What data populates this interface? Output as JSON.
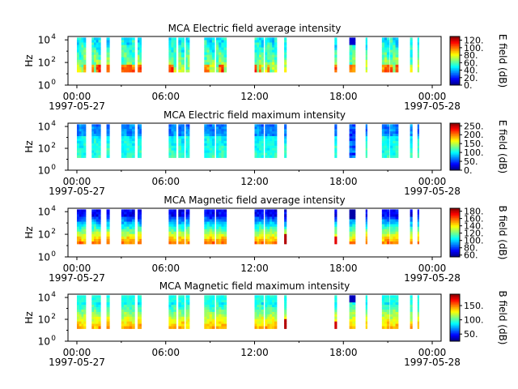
{
  "chart_data": [
    {
      "type": "heatmap",
      "title": "MCA  Electric field average intensity",
      "ylabel": "Hz",
      "colorbar_label": "E field (dB)",
      "x_ticks": [
        "00:00",
        "06:00",
        "12:00",
        "18:00",
        "00:00"
      ],
      "x_tick_hours": [
        0,
        6,
        12,
        18,
        24
      ],
      "date_start": "1997-05-27",
      "date_end": "1997-05-28",
      "xlim_hours": [
        -0.6,
        24.6
      ],
      "y_ticks": [
        "10^4",
        "10^2",
        "10^0"
      ],
      "ylim_log10": [
        0,
        4.3
      ],
      "colorbar_ticks": [
        "120.",
        "100.",
        "80.",
        "60.",
        "40.",
        "20.",
        "0."
      ],
      "colorbar_values": [
        120,
        100,
        80,
        60,
        40,
        20,
        0
      ],
      "colorbar_range": [
        0,
        130
      ],
      "pattern": "e_avg"
    },
    {
      "type": "heatmap",
      "title": "MCA  Electric field maximum intensity",
      "ylabel": "Hz",
      "colorbar_label": "E field (dB)",
      "x_ticks": [
        "00:00",
        "06:00",
        "12:00",
        "18:00",
        "00:00"
      ],
      "x_tick_hours": [
        0,
        6,
        12,
        18,
        24
      ],
      "date_start": "1997-05-27",
      "date_end": "1997-05-28",
      "xlim_hours": [
        -0.6,
        24.6
      ],
      "y_ticks": [
        "10^4",
        "10^2",
        "10^0"
      ],
      "ylim_log10": [
        0,
        4.3
      ],
      "colorbar_ticks": [
        "250.",
        "200.",
        "150.",
        "100.",
        "50.",
        "0."
      ],
      "colorbar_values": [
        250,
        200,
        150,
        100,
        50,
        0
      ],
      "colorbar_range": [
        0,
        265
      ],
      "pattern": "e_max"
    },
    {
      "type": "heatmap",
      "title": "MCA  Magnetic field average intensity",
      "ylabel": "Hz",
      "colorbar_label": "B field (dB)",
      "x_ticks": [
        "00:00",
        "06:00",
        "12:00",
        "18:00",
        "00:00"
      ],
      "x_tick_hours": [
        0,
        6,
        12,
        18,
        24
      ],
      "date_start": "1997-05-27",
      "date_end": "1997-05-28",
      "xlim_hours": [
        -0.6,
        24.6
      ],
      "y_ticks": [
        "10^4",
        "10^2",
        "10^0"
      ],
      "ylim_log10": [
        0,
        4.3
      ],
      "colorbar_ticks": [
        "180.",
        "160.",
        "140.",
        "120.",
        "100.",
        "80.",
        "60."
      ],
      "colorbar_values": [
        180,
        160,
        140,
        120,
        100,
        80,
        60
      ],
      "colorbar_range": [
        55,
        188
      ],
      "pattern": "b_avg"
    },
    {
      "type": "heatmap",
      "title": "MCA  Magnetic field maximum intensity",
      "ylabel": "Hz",
      "colorbar_label": "B field (dB)",
      "x_ticks": [
        "00:00",
        "06:00",
        "12:00",
        "18:00",
        "00:00"
      ],
      "x_tick_hours": [
        0,
        6,
        12,
        18,
        24
      ],
      "date_start": "1997-05-27",
      "date_end": "1997-05-28",
      "xlim_hours": [
        -0.6,
        24.6
      ],
      "y_ticks": [
        "10^4",
        "10^2",
        "10^0"
      ],
      "ylim_log10": [
        0,
        4.3
      ],
      "colorbar_ticks": [
        "150.",
        "100.",
        "50."
      ],
      "colorbar_values": [
        150,
        100,
        50
      ],
      "colorbar_range": [
        25,
        190
      ],
      "pattern": "b_max"
    }
  ],
  "data_segments_hours": [
    [
      0.0,
      0.6
    ],
    [
      1.0,
      1.6
    ],
    [
      2.0,
      2.2
    ],
    [
      3.0,
      3.9
    ],
    [
      4.1,
      4.35
    ],
    [
      6.2,
      6.7
    ],
    [
      6.85,
      7.25
    ],
    [
      7.35,
      7.6
    ],
    [
      8.6,
      9.3
    ],
    [
      9.4,
      10.1
    ],
    [
      12.0,
      12.6
    ],
    [
      12.7,
      13.5
    ],
    [
      14.0,
      14.15
    ],
    [
      17.4,
      17.55
    ],
    [
      18.4,
      18.8
    ],
    [
      19.5,
      19.6
    ],
    [
      20.6,
      21.1
    ],
    [
      21.15,
      21.7
    ],
    [
      22.5,
      22.65
    ],
    [
      23.0,
      23.1
    ]
  ]
}
